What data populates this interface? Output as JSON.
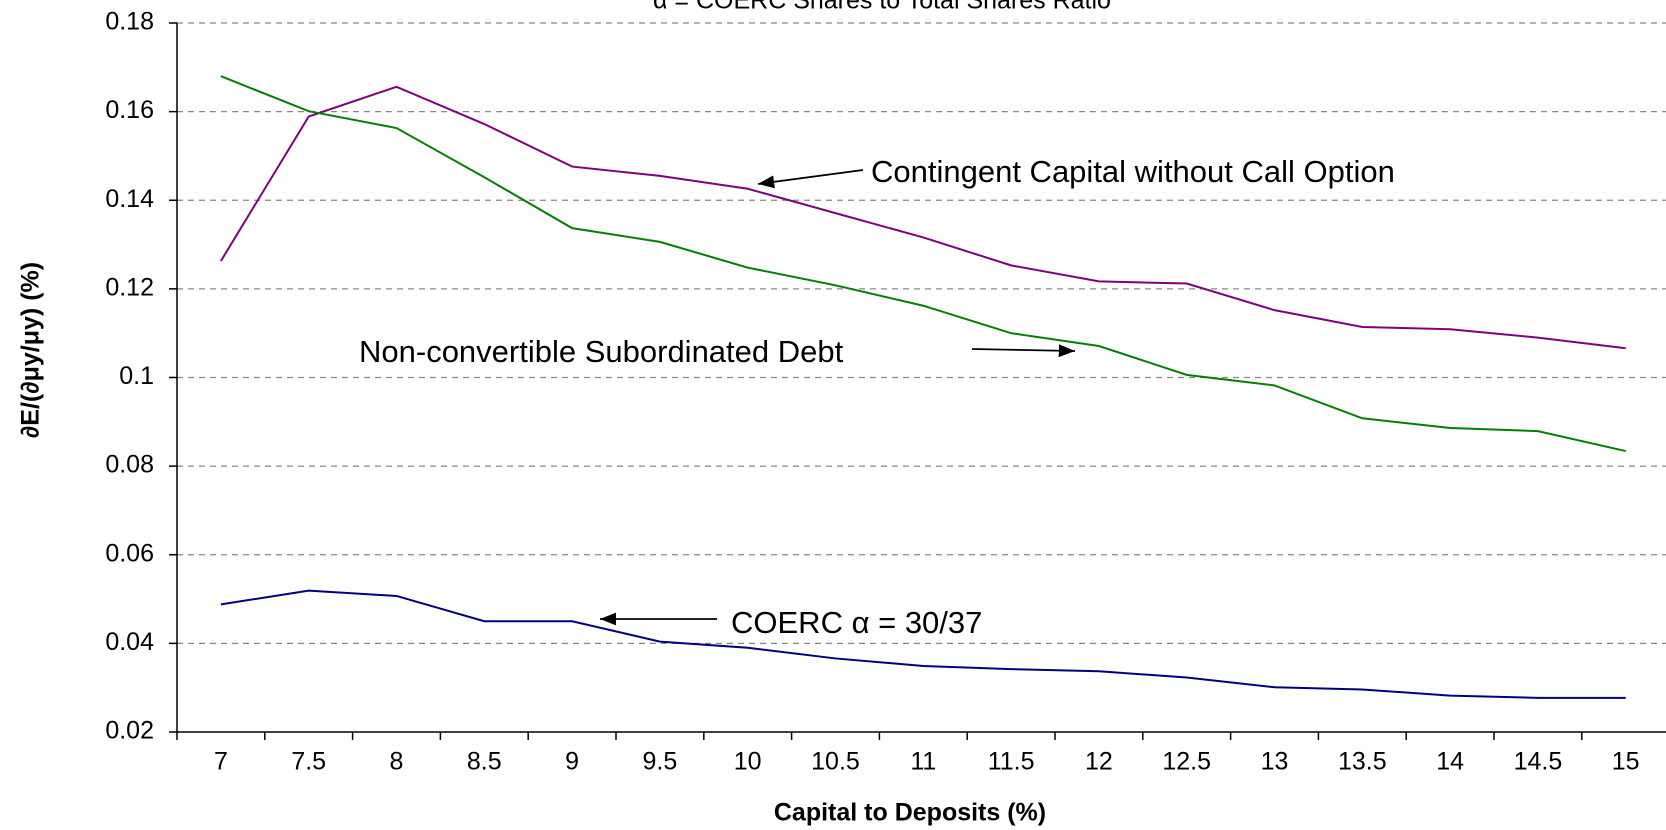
{
  "chart_data": {
    "type": "line",
    "title": "α = COERC Shares to Total Shares Ratio",
    "x_label": "Capital to Deposits (%)",
    "y_label": "∂E/(∂μy/μy) (%)",
    "categories": [
      "7",
      "7.5",
      "8",
      "8.5",
      "9",
      "9.5",
      "10",
      "10.5",
      "11",
      "11.5",
      "12",
      "12.5",
      "13",
      "13.5",
      "14",
      "14.5",
      "15"
    ],
    "series": [
      {
        "color": "#800080",
        "values": [
          0.1263,
          0.1589,
          0.1656,
          0.1572,
          0.1476,
          0.1455,
          0.1426,
          0.1371,
          0.1316,
          0.1253,
          0.1217,
          0.1212,
          0.1152,
          0.1114,
          0.1109,
          0.109,
          0.1066
        ]
      },
      {
        "color": "#008000",
        "values": [
          0.168,
          0.1601,
          0.1563,
          0.1452,
          0.1337,
          0.1306,
          0.1248,
          0.1208,
          0.1162,
          0.11,
          0.1071,
          0.1006,
          0.0982,
          0.0908,
          0.0886,
          0.0879,
          0.0834
        ]
      },
      {
        "color": "#000080",
        "values": [
          0.0488,
          0.0519,
          0.0507,
          0.045,
          0.045,
          0.0404,
          0.039,
          0.0366,
          0.0349,
          0.0342,
          0.0337,
          0.0323,
          0.0301,
          0.0296,
          0.0282,
          0.0277,
          0.0277
        ]
      }
    ],
    "annotations": [
      {
        "text": "Contingent Capital without Call Option"
      },
      {
        "text": "Non-convertible Subordinated Debt"
      },
      {
        "text": "COERC α = 30/37"
      }
    ],
    "ylim": [
      0.02,
      0.18
    ],
    "yticks": [
      0.02,
      0.04,
      0.06,
      0.08,
      0.1,
      0.12,
      0.14,
      0.16,
      0.18
    ],
    "grid": true
  }
}
